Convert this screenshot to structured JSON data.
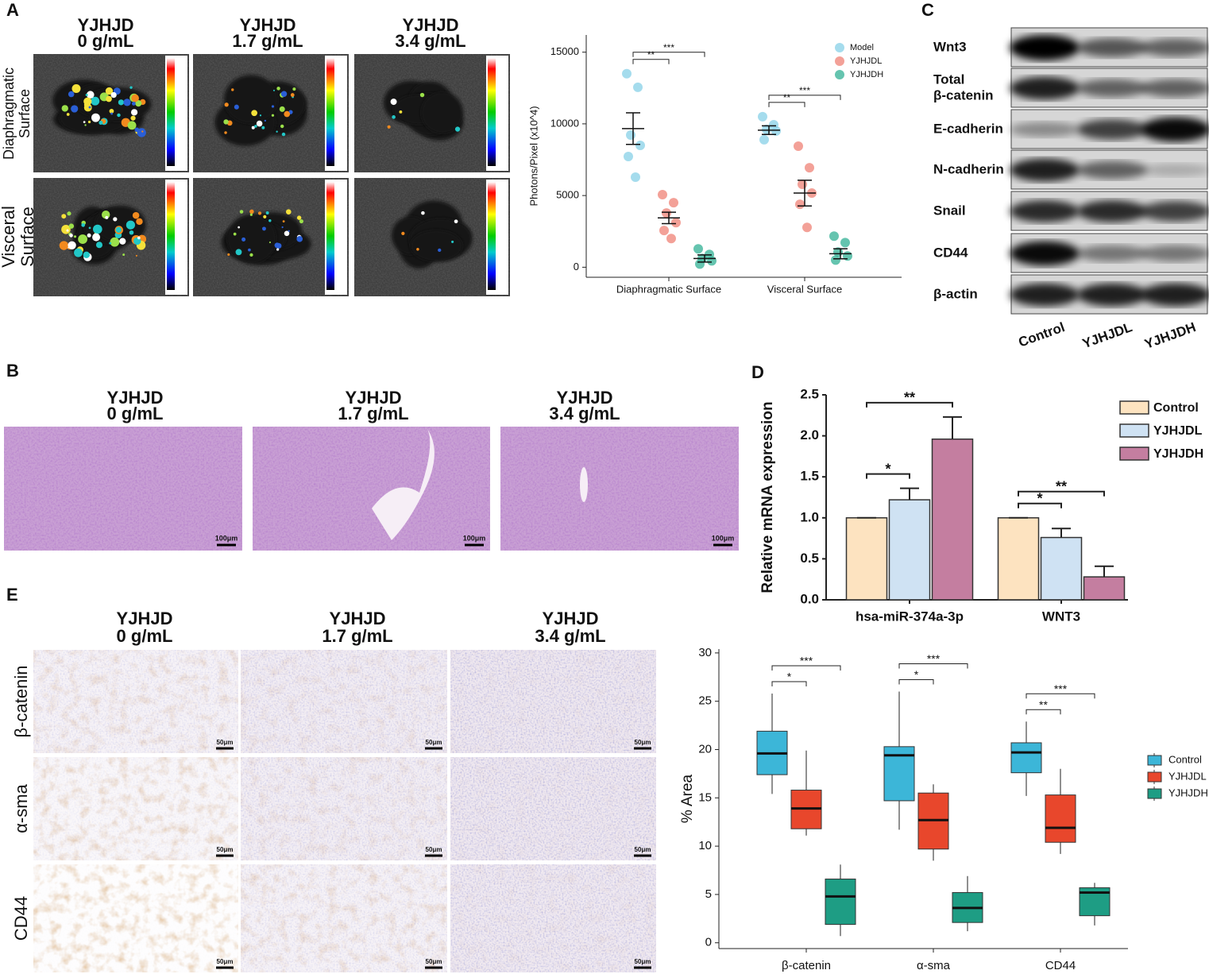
{
  "panel_labels": [
    "A",
    "B",
    "C",
    "D",
    "E"
  ],
  "panel_a": {
    "columns": [
      [
        "YJHJD",
        "0 g/mL"
      ],
      [
        "YJHJD",
        "1.7 g/mL"
      ],
      [
        "YJHJD",
        "3.4 g/mL"
      ]
    ],
    "rows": [
      [
        "Diaphragmatic",
        "Surface"
      ],
      [
        "Visceral",
        "Surface"
      ]
    ]
  },
  "panel_b": {
    "columns": [
      [
        "YJHJD",
        "0 g/mL"
      ],
      [
        "YJHJD",
        "1.7 g/mL"
      ],
      [
        "YJHJD",
        "3.4 g/mL"
      ]
    ],
    "scale_bar": "100μm"
  },
  "panel_c": {
    "rows": [
      [
        "Wnt3"
      ],
      [
        "Total",
        "β-catenin"
      ],
      [
        "E-cadherin"
      ],
      [
        "N-cadherin"
      ],
      [
        "Snail"
      ],
      [
        "CD44"
      ],
      [
        "β-actin"
      ]
    ],
    "columns": [
      "Control",
      "YJHJDL",
      "YJHJDH"
    ]
  },
  "panel_e": {
    "columns": [
      [
        "YJHJD",
        "0 g/mL"
      ],
      [
        "YJHJD",
        "1.7 g/mL"
      ],
      [
        "YJHJD",
        "3.4 g/mL"
      ]
    ],
    "rows": [
      "β-catenin",
      "α-sma",
      "CD44"
    ],
    "scale_bar": "50μm"
  },
  "chart_data": [
    {
      "type": "scatter",
      "ylabel": "Photons/Pixel (x10^4)",
      "categories": [
        "Diaphragmatic Surface",
        "Visceral Surface"
      ],
      "ylim": [
        -700,
        16200
      ],
      "yticks": [
        0,
        5000,
        10000,
        15000
      ],
      "legend": "top-right",
      "series": [
        {
          "name": "Model",
          "color": "#8fd3e8",
          "values": [
            [
              13500,
              12550,
              9220,
              8500,
              7720,
              6280
            ],
            [
              10500,
              9940,
              9610,
              9500,
              8890
            ]
          ],
          "means": [
            9670,
            9560
          ],
          "errors": [
            1100,
            300
          ]
        },
        {
          "name": "YJHJDL",
          "color": "#f08a7e",
          "values": [
            [
              5060,
              4500,
              3780,
              3110,
              2560,
              2000
            ],
            [
              8440,
              6940,
              5780,
              5170,
              4390,
              2780
            ]
          ],
          "means": [
            3440,
            5170
          ],
          "errors": [
            400,
            900
          ]
        },
        {
          "name": "YJHJDH",
          "color": "#3fb59b",
          "values": [
            [
              1280,
              890,
              610,
              440,
              220
            ],
            [
              2170,
              1720,
              1060,
              780,
              500
            ]
          ],
          "means": [
            610,
            940
          ],
          "errors": [
            250,
            350
          ]
        }
      ],
      "annotations": [
        {
          "text": "**",
          "category": 0,
          "pair": [
            0,
            1
          ]
        },
        {
          "text": "***",
          "category": 0,
          "pair": [
            0,
            2
          ]
        },
        {
          "text": "**",
          "category": 1,
          "pair": [
            0,
            1
          ]
        },
        {
          "text": "***",
          "category": 1,
          "pair": [
            0,
            2
          ]
        }
      ]
    },
    {
      "type": "bar",
      "ylabel": "Relative mRNA expression",
      "categories": [
        "hsa-miR-374a-3p",
        "WNT3"
      ],
      "ylim": [
        0,
        2.5
      ],
      "yticks": [
        {
          "value": 0,
          "label": "0.0"
        },
        0.5,
        {
          "value": 1,
          "label": "1.0"
        },
        1.5,
        {
          "value": 2,
          "label": "2.0"
        },
        2.5
      ],
      "legend": "right",
      "series": [
        {
          "name": "Control",
          "color": "#fde3c0",
          "values": [
            1.0,
            1.0
          ],
          "errors": [
            0,
            0
          ]
        },
        {
          "name": "YJHJDL",
          "color": "#cfe2f3",
          "values": [
            1.22,
            0.76
          ],
          "errors": [
            0.14,
            0.11
          ]
        },
        {
          "name": "YJHJDH",
          "color": "#c47ea0",
          "values": [
            1.96,
            0.28
          ],
          "errors": [
            0.27,
            0.13
          ]
        }
      ],
      "annotations": [
        {
          "text": "*",
          "category": 0,
          "pair": [
            0,
            1
          ]
        },
        {
          "text": "**",
          "category": 0,
          "pair": [
            0,
            2
          ]
        },
        {
          "text": "*",
          "category": 1,
          "pair": [
            0,
            1
          ]
        },
        {
          "text": "**",
          "category": 1,
          "pair": [
            0,
            2
          ]
        }
      ]
    },
    {
      "type": "box",
      "ylabel": "% Area",
      "categories": [
        "β-catenin",
        "α-sma",
        "CD44"
      ],
      "ylim": [
        -0.6,
        30.4
      ],
      "yticks": [
        0,
        5,
        10,
        15,
        20,
        25,
        30
      ],
      "legend": "right",
      "series": [
        {
          "name": "Control",
          "color": "#3cb6d8",
          "values": [
            [
              15.4,
              17.4,
              19.6,
              21.9,
              25.8
            ],
            [
              11.7,
              14.7,
              19.4,
              20.3,
              26.0
            ],
            [
              15.2,
              17.6,
              19.7,
              20.7,
              22.9
            ]
          ]
        },
        {
          "name": "YJHJDL",
          "color": "#e8472c",
          "values": [
            [
              11.1,
              11.8,
              13.9,
              15.8,
              19.9
            ],
            [
              8.5,
              9.7,
              12.7,
              15.5,
              16.4
            ],
            [
              9.2,
              10.4,
              11.9,
              15.3,
              18.0
            ]
          ]
        },
        {
          "name": "YJHJDH",
          "color": "#1e9d84",
          "values": [
            [
              0.7,
              1.9,
              4.8,
              6.6,
              8.1
            ],
            [
              1.2,
              2.1,
              3.6,
              5.2,
              6.9
            ],
            [
              1.8,
              2.8,
              5.2,
              5.7,
              6.2
            ]
          ]
        }
      ],
      "annotations": [
        {
          "text": "*",
          "category": 0,
          "pair": [
            0,
            1
          ]
        },
        {
          "text": "***",
          "category": 0,
          "pair": [
            0,
            2
          ]
        },
        {
          "text": "*",
          "category": 1,
          "pair": [
            0,
            1
          ]
        },
        {
          "text": "***",
          "category": 1,
          "pair": [
            0,
            2
          ]
        },
        {
          "text": "**",
          "category": 2,
          "pair": [
            0,
            1
          ]
        },
        {
          "text": "***",
          "category": 2,
          "pair": [
            0,
            2
          ]
        }
      ]
    }
  ]
}
